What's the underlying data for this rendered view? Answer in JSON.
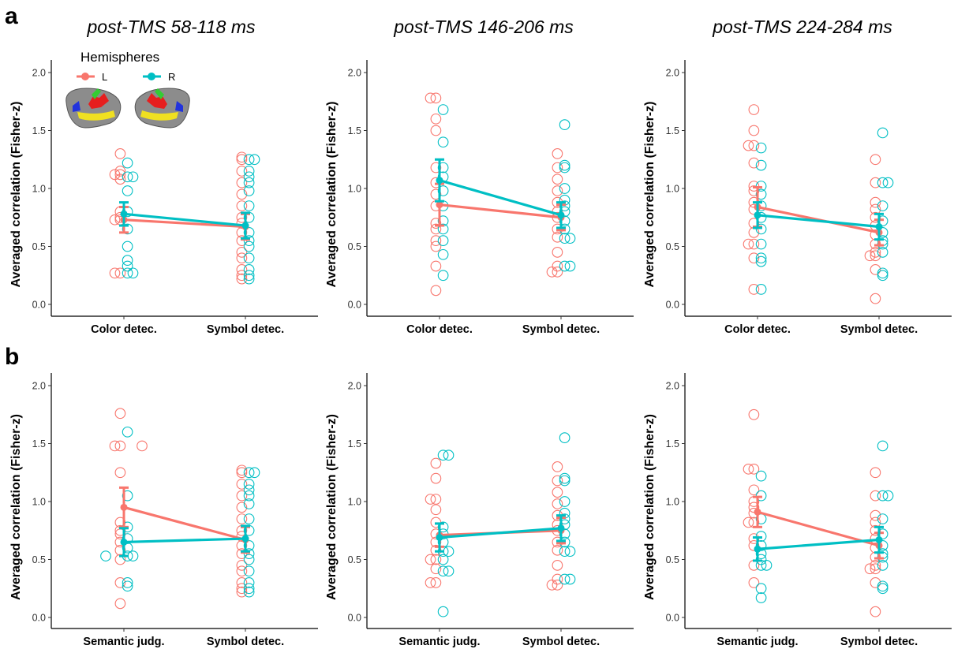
{
  "panel_labels": [
    "a",
    "b"
  ],
  "column_titles": [
    "post-TMS 58-118 ms",
    "post-TMS 146-206 ms",
    "post-TMS 224-284 ms"
  ],
  "legend": {
    "title": "Hemispheres",
    "entries": [
      {
        "label": "L",
        "color": "#F8766D"
      },
      {
        "label": "R",
        "color": "#00BFC4"
      }
    ]
  },
  "colors": {
    "L": "#F8766D",
    "R": "#00BFC4",
    "axis": "#000000"
  },
  "chart_data": [
    {
      "type": "scatter",
      "row": "a",
      "title": "post-TMS 58-118 ms",
      "ylabel": "Averaged correlation (Fisher-z)",
      "ylim": [
        0,
        2.0
      ],
      "yticks": [
        "0.0",
        "0.5",
        "1.0",
        "1.5",
        "2.0"
      ],
      "categories": [
        "Color detec.",
        "Symbol detec."
      ],
      "series": [
        {
          "name": "L",
          "means": [
            0.73,
            0.67
          ],
          "errors": [
            0.11,
            0.11
          ],
          "points": [
            [
              0.27,
              0.27,
              0.73,
              0.73,
              0.75,
              0.8,
              1.08,
              1.12,
              1.12,
              1.15,
              1.3
            ],
            [
              0.22,
              0.25,
              0.3,
              0.4,
              0.45,
              0.55,
              0.62,
              0.7,
              0.75,
              0.85,
              0.95,
              1.05,
              1.15,
              1.25,
              1.27
            ]
          ]
        },
        {
          "name": "R",
          "means": [
            0.78,
            0.68
          ],
          "errors": [
            0.1,
            0.11
          ],
          "points": [
            [
              0.27,
              0.27,
              0.33,
              0.38,
              0.5,
              0.65,
              0.8,
              0.98,
              1.1,
              1.1,
              1.22
            ],
            [
              0.22,
              0.25,
              0.3,
              0.4,
              0.5,
              0.55,
              0.62,
              0.75,
              0.85,
              0.98,
              1.05,
              1.1,
              1.15,
              1.25,
              1.25
            ]
          ]
        }
      ]
    },
    {
      "type": "scatter",
      "row": "a",
      "title": "post-TMS 146-206 ms",
      "ylabel": "Averaged correlation (Fisher-z)",
      "ylim": [
        0,
        2.0
      ],
      "yticks": [
        "0.0",
        "0.5",
        "1.0",
        "1.5",
        "2.0"
      ],
      "categories": [
        "Color detec.",
        "Symbol detec."
      ],
      "series": [
        {
          "name": "L",
          "means": [
            0.86,
            0.75
          ],
          "errors": [
            0.18,
            0.11
          ],
          "points": [
            [
              0.12,
              0.33,
              0.5,
              0.55,
              0.65,
              0.7,
              0.85,
              0.95,
              1.05,
              1.18,
              1.5,
              1.6,
              1.78,
              1.78
            ],
            [
              0.28,
              0.28,
              0.33,
              0.45,
              0.58,
              0.65,
              0.75,
              0.8,
              0.88,
              0.98,
              1.08,
              1.18,
              1.3
            ]
          ]
        },
        {
          "name": "R",
          "means": [
            1.07,
            0.77
          ],
          "errors": [
            0.18,
            0.11
          ],
          "points": [
            [
              0.25,
              0.43,
              0.55,
              0.65,
              0.72,
              0.85,
              0.98,
              1.1,
              1.18,
              1.4,
              1.68
            ],
            [
              0.33,
              0.33,
              0.57,
              0.57,
              0.65,
              0.72,
              0.8,
              0.85,
              0.9,
              1.0,
              1.18,
              1.2,
              1.55
            ]
          ]
        }
      ]
    },
    {
      "type": "scatter",
      "row": "a",
      "title": "post-TMS 224-284 ms",
      "ylabel": "Averaged correlation (Fisher-z)",
      "ylim": [
        0,
        2.0
      ],
      "yticks": [
        "0.0",
        "0.5",
        "1.0",
        "1.5",
        "2.0"
      ],
      "categories": [
        "Color detec.",
        "Symbol detec."
      ],
      "series": [
        {
          "name": "L",
          "means": [
            0.84,
            0.62
          ],
          "errors": [
            0.17,
            0.11
          ],
          "points": [
            [
              0.13,
              0.4,
              0.52,
              0.52,
              0.62,
              0.7,
              0.82,
              0.88,
              0.98,
              1.02,
              1.22,
              1.37,
              1.37,
              1.5,
              1.68
            ],
            [
              0.05,
              0.3,
              0.42,
              0.42,
              0.45,
              0.52,
              0.6,
              0.68,
              0.75,
              0.82,
              0.88,
              1.05,
              1.25
            ]
          ]
        },
        {
          "name": "R",
          "means": [
            0.77,
            0.67
          ],
          "errors": [
            0.11,
            0.11
          ],
          "points": [
            [
              0.13,
              0.37,
              0.4,
              0.52,
              0.65,
              0.75,
              0.85,
              0.95,
              1.02,
              1.2,
              1.35
            ],
            [
              0.25,
              0.27,
              0.45,
              0.52,
              0.55,
              0.62,
              0.72,
              0.85,
              1.05,
              1.05,
              1.48
            ]
          ]
        }
      ]
    },
    {
      "type": "scatter",
      "row": "b",
      "title": "",
      "ylabel": "Averaged correlation (Fisher-z)",
      "ylim": [
        0,
        2.0
      ],
      "yticks": [
        "0.0",
        "0.5",
        "1.0",
        "1.5",
        "2.0"
      ],
      "categories": [
        "Semantic judg.",
        "Symbol detec."
      ],
      "series": [
        {
          "name": "L",
          "means": [
            0.95,
            0.67
          ],
          "errors": [
            0.17,
            0.11
          ],
          "points": [
            [
              0.12,
              0.3,
              0.5,
              0.58,
              0.65,
              0.72,
              0.75,
              0.82,
              1.25,
              1.48,
              1.48,
              1.48,
              1.76
            ],
            [
              0.22,
              0.25,
              0.3,
              0.4,
              0.45,
              0.55,
              0.62,
              0.7,
              0.75,
              0.85,
              0.95,
              1.05,
              1.15,
              1.25,
              1.27
            ]
          ]
        },
        {
          "name": "R",
          "means": [
            0.65,
            0.68
          ],
          "errors": [
            0.12,
            0.11
          ],
          "points": [
            [
              0.27,
              0.3,
              0.53,
              0.53,
              0.53,
              0.6,
              0.68,
              0.78,
              1.05,
              1.6
            ],
            [
              0.22,
              0.25,
              0.3,
              0.4,
              0.5,
              0.55,
              0.62,
              0.75,
              0.85,
              0.98,
              1.05,
              1.1,
              1.15,
              1.25,
              1.25
            ]
          ]
        }
      ]
    },
    {
      "type": "scatter",
      "row": "b",
      "title": "",
      "ylabel": "Averaged correlation (Fisher-z)",
      "ylim": [
        0,
        2.0
      ],
      "yticks": [
        "0.0",
        "0.5",
        "1.0",
        "1.5",
        "2.0"
      ],
      "categories": [
        "Semantic judg.",
        "Symbol detec."
      ],
      "series": [
        {
          "name": "L",
          "means": [
            0.71,
            0.75
          ],
          "errors": [
            0.1,
            0.11
          ],
          "points": [
            [
              0.3,
              0.3,
              0.42,
              0.5,
              0.5,
              0.58,
              0.65,
              0.72,
              0.82,
              0.93,
              1.02,
              1.02,
              1.2,
              1.33
            ],
            [
              0.28,
              0.28,
              0.33,
              0.45,
              0.58,
              0.65,
              0.75,
              0.8,
              0.88,
              0.98,
              1.08,
              1.18,
              1.3
            ]
          ]
        },
        {
          "name": "R",
          "means": [
            0.69,
            0.77
          ],
          "errors": [
            0.12,
            0.11
          ],
          "points": [
            [
              0.05,
              0.4,
              0.4,
              0.5,
              0.57,
              0.57,
              0.65,
              0.72,
              0.78,
              1.4,
              1.4
            ],
            [
              0.33,
              0.33,
              0.57,
              0.57,
              0.65,
              0.72,
              0.8,
              0.85,
              0.9,
              1.0,
              1.18,
              1.2,
              1.55
            ]
          ]
        }
      ]
    },
    {
      "type": "scatter",
      "row": "b",
      "title": "",
      "ylabel": "Averaged correlation (Fisher-z)",
      "ylim": [
        0,
        2.0
      ],
      "yticks": [
        "0.0",
        "0.5",
        "1.0",
        "1.5",
        "2.0"
      ],
      "categories": [
        "Semantic judg.",
        "Symbol detec."
      ],
      "series": [
        {
          "name": "L",
          "means": [
            0.91,
            0.62
          ],
          "errors": [
            0.13,
            0.11
          ],
          "points": [
            [
              0.3,
              0.45,
              0.62,
              0.68,
              0.82,
              0.82,
              0.9,
              0.95,
              1.0,
              1.1,
              1.28,
              1.28,
              1.75
            ],
            [
              0.05,
              0.3,
              0.42,
              0.42,
              0.45,
              0.52,
              0.6,
              0.68,
              0.75,
              0.82,
              0.88,
              1.05,
              1.25
            ]
          ]
        },
        {
          "name": "R",
          "means": [
            0.59,
            0.67
          ],
          "errors": [
            0.1,
            0.11
          ],
          "points": [
            [
              0.17,
              0.25,
              0.45,
              0.45,
              0.5,
              0.55,
              0.62,
              0.7,
              0.85,
              1.05,
              1.22
            ],
            [
              0.25,
              0.27,
              0.45,
              0.52,
              0.55,
              0.62,
              0.72,
              0.85,
              1.05,
              1.05,
              1.48
            ]
          ]
        }
      ]
    }
  ]
}
